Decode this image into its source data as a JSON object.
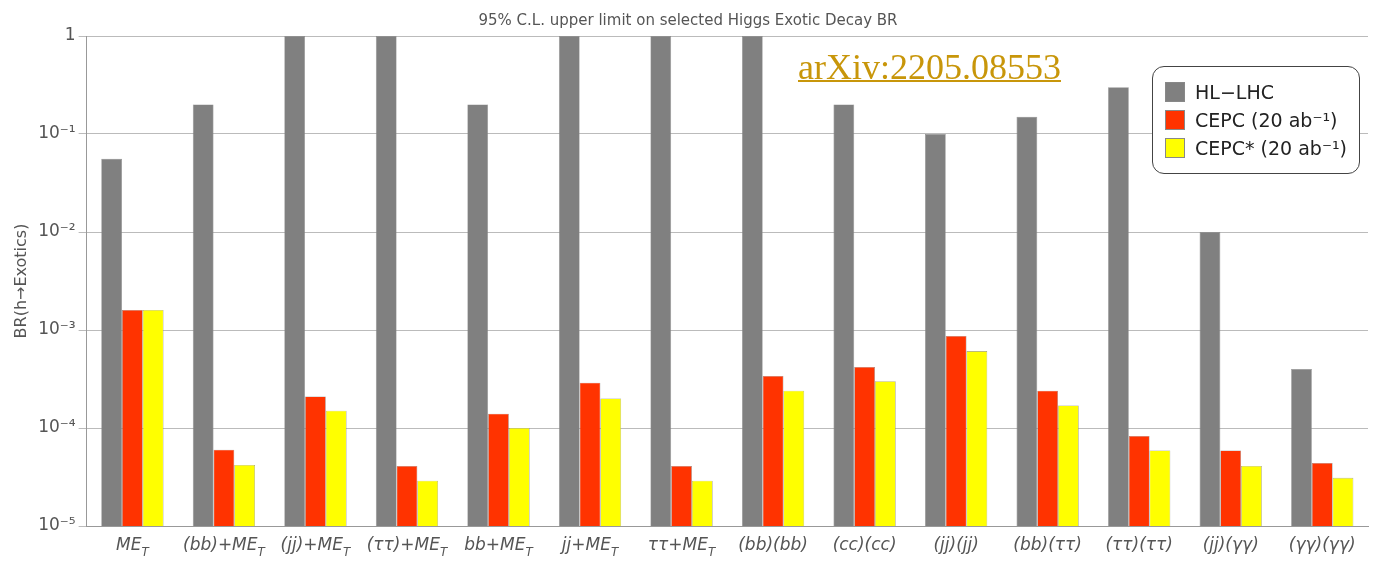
{
  "chart_data": {
    "type": "bar",
    "title": "95% C.L. upper limit on selected Higgs Exotic Decay BR",
    "ylabel": "BR(h→Exotics)",
    "categories": [
      "ME$_{T}$",
      "(bb)+ME$_{T}$",
      "(jj)+ME$_{T}$",
      "(ττ)+ME$_{T}$",
      "bb+ME$_{T}$",
      "jj+ME$_{T}$",
      "ττ+ME$_{T}$",
      "(bb)(bb)",
      "(cc)(cc)",
      "(jj)(jj)",
      "(bb)(ττ)",
      "(ττ)(ττ)",
      "(jj)(γγ)",
      "(γγ)(γγ)"
    ],
    "series": [
      {
        "name": "HL−LHC",
        "color": "#808080",
        "values": [
          0.056,
          0.2,
          1,
          1,
          0.2,
          1,
          1,
          1,
          0.2,
          0.1,
          0.15,
          0.3,
          0.01,
          0.0004
        ]
      },
      {
        "name": "CEPC (20 ab⁻¹)",
        "color": "#ff3300",
        "values": [
          0.0016,
          6e-05,
          0.00021,
          4.1e-05,
          0.00014,
          0.00029,
          4.1e-05,
          0.00034,
          0.00042,
          0.00087,
          0.00024,
          8.3e-05,
          5.9e-05,
          4.4e-05
        ]
      },
      {
        "name": "CEPC* (20 ab⁻¹)",
        "color": "#ffff00",
        "values": [
          0.0016,
          4.2e-05,
          0.00015,
          2.9e-05,
          0.0001,
          0.0002,
          2.9e-05,
          0.00024,
          0.0003,
          0.00061,
          0.00017,
          5.9e-05,
          4.1e-05,
          3.1e-05
        ]
      }
    ],
    "log": "y",
    "ylim": [
      1e-05,
      1
    ],
    "yticks": [
      {
        "value": 1e-05,
        "label": "10⁻⁵"
      },
      {
        "value": 0.0001,
        "label": "10⁻⁴"
      },
      {
        "value": 0.001,
        "label": "10⁻³"
      },
      {
        "value": 0.01,
        "label": "10⁻²"
      },
      {
        "value": 0.1,
        "label": "10⁻¹"
      },
      1
    ],
    "grid": "y",
    "legend": "top right",
    "annotations": [
      "arXiv:2205.08553"
    ]
  }
}
